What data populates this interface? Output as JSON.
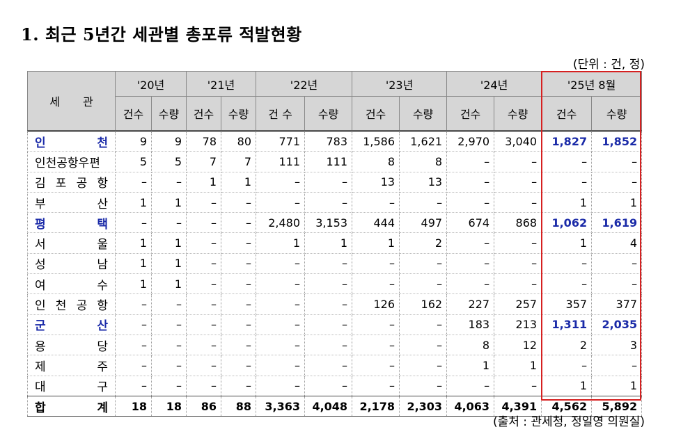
{
  "title": "1.  최근 5년간 세관별 총포류 적발현황",
  "unit_note": "(단위 : 건, 정)",
  "source_note": "(출처 : 관세청, 정일영 의원실)",
  "header": {
    "customs_label": "세 관",
    "years": [
      "'20년",
      "'21년",
      "'22년",
      "'23년",
      "'24년",
      "'25년 8월"
    ],
    "subcols": [
      [
        "건수",
        "수량"
      ],
      [
        "건수",
        "수량"
      ],
      [
        "건 수",
        "수량"
      ],
      [
        "건수",
        "수량"
      ],
      [
        "건수",
        "수량"
      ],
      [
        "건수",
        "수량"
      ]
    ]
  },
  "colors": {
    "accent_blue": "#1a2aa8",
    "highlight_red": "#d62020",
    "header_gray": "#d6d6d6"
  },
  "rows": [
    {
      "name": "인 천",
      "blue": true,
      "values": [
        "9",
        "9",
        "78",
        "80",
        "771",
        "783",
        "1,586",
        "1,621",
        "2,970",
        "3,040",
        "1,827",
        "1,852"
      ]
    },
    {
      "name": "인천공항우편",
      "blue": false,
      "values": [
        "5",
        "5",
        "7",
        "7",
        "111",
        "111",
        "8",
        "8",
        "–",
        "–",
        "–",
        "–"
      ]
    },
    {
      "name": "김 포 공 항",
      "blue": false,
      "values": [
        "–",
        "–",
        "1",
        "1",
        "–",
        "–",
        "13",
        "13",
        "–",
        "–",
        "–",
        "–"
      ]
    },
    {
      "name": "부 산",
      "blue": false,
      "values": [
        "1",
        "1",
        "–",
        "–",
        "–",
        "–",
        "–",
        "–",
        "–",
        "–",
        "1",
        "1"
      ]
    },
    {
      "name": "평 택",
      "blue": true,
      "values": [
        "–",
        "–",
        "–",
        "–",
        "2,480",
        "3,153",
        "444",
        "497",
        "674",
        "868",
        "1,062",
        "1,619"
      ]
    },
    {
      "name": "서 울",
      "blue": false,
      "values": [
        "1",
        "1",
        "–",
        "–",
        "1",
        "1",
        "1",
        "2",
        "–",
        "–",
        "1",
        "4"
      ]
    },
    {
      "name": "성 남",
      "blue": false,
      "values": [
        "1",
        "1",
        "–",
        "–",
        "–",
        "–",
        "–",
        "–",
        "–",
        "–",
        "–",
        "–"
      ]
    },
    {
      "name": "여 수",
      "blue": false,
      "values": [
        "1",
        "1",
        "–",
        "–",
        "–",
        "–",
        "–",
        "–",
        "–",
        "–",
        "–",
        "–"
      ]
    },
    {
      "name": "인 천 공 항",
      "blue": false,
      "values": [
        "–",
        "–",
        "–",
        "–",
        "–",
        "–",
        "126",
        "162",
        "227",
        "257",
        "357",
        "377"
      ]
    },
    {
      "name": "군 산",
      "blue": true,
      "values": [
        "–",
        "–",
        "–",
        "–",
        "–",
        "–",
        "–",
        "–",
        "183",
        "213",
        "1,311",
        "2,035"
      ]
    },
    {
      "name": "용 당",
      "blue": false,
      "values": [
        "–",
        "–",
        "–",
        "–",
        "–",
        "–",
        "–",
        "–",
        "8",
        "12",
        "2",
        "3"
      ]
    },
    {
      "name": "제 주",
      "blue": false,
      "values": [
        "–",
        "–",
        "–",
        "–",
        "–",
        "–",
        "–",
        "–",
        "1",
        "1",
        "–",
        "–"
      ]
    },
    {
      "name": "대 구",
      "blue": false,
      "values": [
        "–",
        "–",
        "–",
        "–",
        "–",
        "–",
        "–",
        "–",
        "–",
        "–",
        "1",
        "1"
      ]
    },
    {
      "name": "합 계",
      "blue": false,
      "total": true,
      "values": [
        "18",
        "18",
        "86",
        "88",
        "3,363",
        "4,048",
        "2,178",
        "2,303",
        "4,063",
        "4,391",
        "4,562",
        "5,892"
      ]
    }
  ]
}
